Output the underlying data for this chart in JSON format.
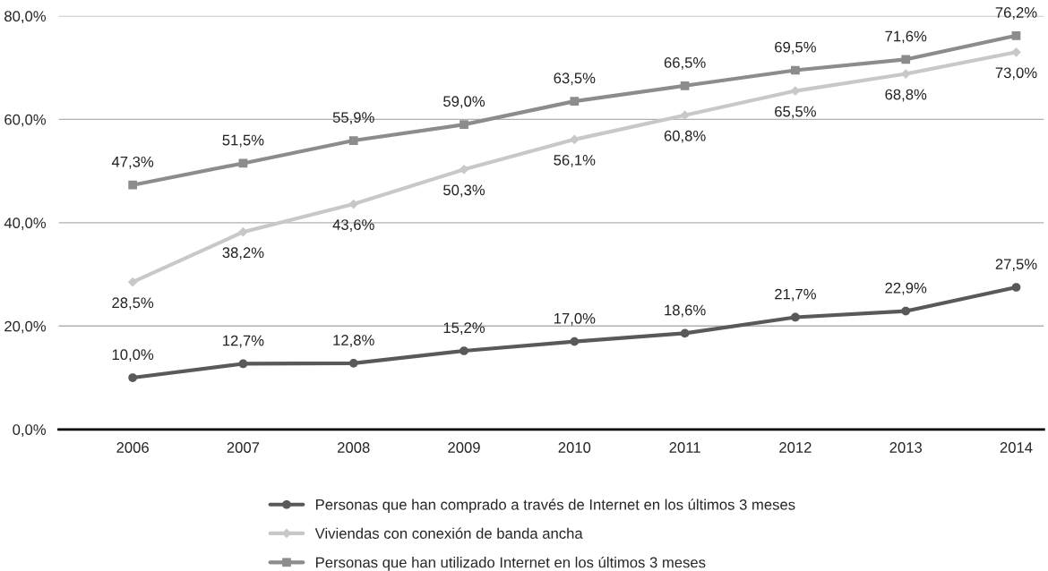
{
  "chart_data": {
    "type": "line",
    "categories": [
      "2006",
      "2007",
      "2008",
      "2009",
      "2010",
      "2011",
      "2012",
      "2013",
      "2014"
    ],
    "series": [
      {
        "name": "Personas que han comprado a través de Internet en los últimos 3 meses",
        "color": "#595959",
        "marker": "circle",
        "values": [
          10.0,
          12.7,
          12.8,
          15.2,
          17.0,
          18.6,
          21.7,
          22.9,
          27.5
        ],
        "value_labels": [
          "10,0%",
          "12,7%",
          "12,8%",
          "15,2%",
          "17,0%",
          "18,6%",
          "21,7%",
          "22,9%",
          "27,5%"
        ]
      },
      {
        "name": "Viviendas con conexión de banda ancha",
        "color": "#c8c8c8",
        "marker": "diamond",
        "values": [
          28.5,
          38.2,
          43.6,
          50.3,
          56.1,
          60.8,
          65.5,
          68.8,
          73.0
        ],
        "value_labels": [
          "28,5%",
          "38,2%",
          "43,6%",
          "50,3%",
          "56,1%",
          "60,8%",
          "65,5%",
          "68,8%",
          "73,0%"
        ]
      },
      {
        "name": "Personas que han utilizado Internet en los últimos 3 meses",
        "color": "#8c8c8c",
        "marker": "square",
        "values": [
          47.3,
          51.5,
          55.9,
          59.0,
          63.5,
          66.5,
          69.5,
          71.6,
          76.2
        ],
        "value_labels": [
          "47,3%",
          "51,5%",
          "55,9%",
          "59,0%",
          "63,5%",
          "66,5%",
          "69,5%",
          "71,6%",
          "76,2%"
        ]
      }
    ],
    "ylim": [
      0,
      80
    ],
    "yticks": [
      {
        "value": 0,
        "label": "0,0%"
      },
      {
        "value": 20,
        "label": "20,0%"
      },
      {
        "value": 40,
        "label": "40,0%"
      },
      {
        "value": 60,
        "label": "60,0%"
      },
      {
        "value": 80,
        "label": "80,0%"
      }
    ],
    "grid": "y",
    "legend": "bottom",
    "line_style": "solid"
  }
}
